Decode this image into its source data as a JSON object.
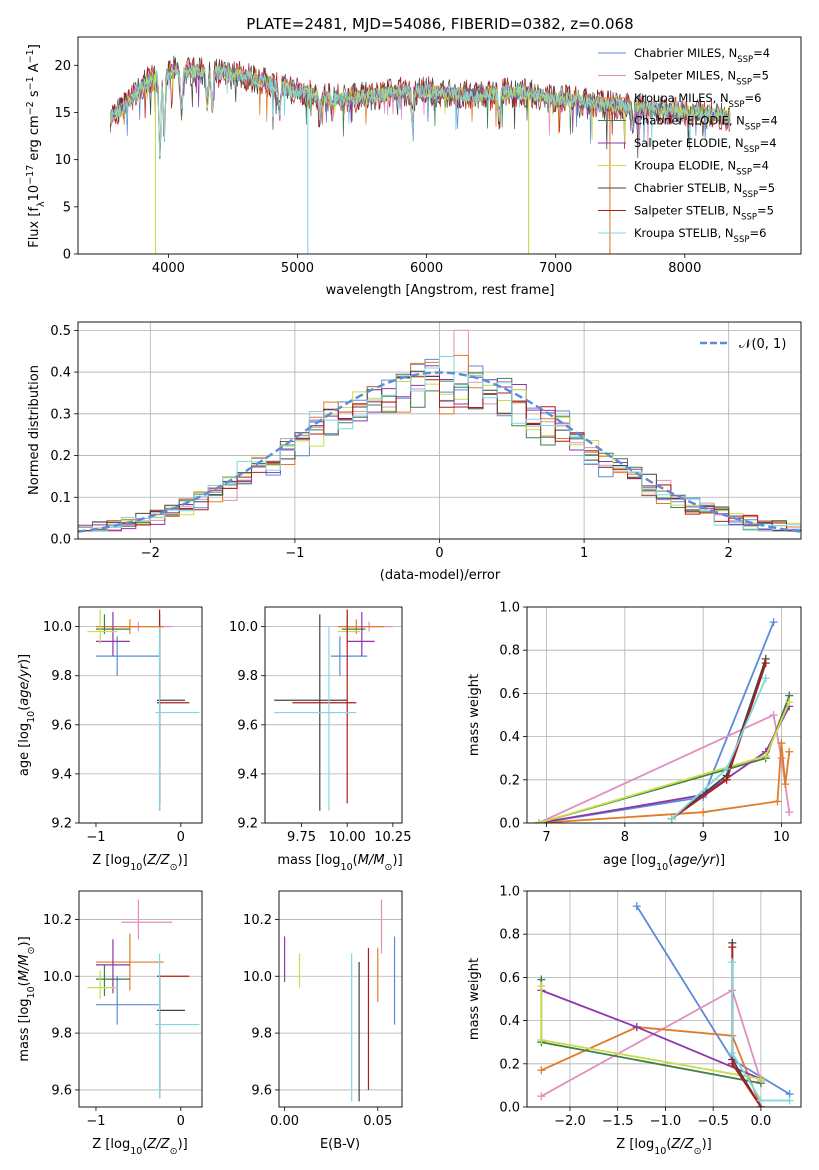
{
  "title": "PLATE=2481, MJD=54086, FIBERID=0382, z=0.068",
  "colors": {
    "Chabrier MILES": "#5b8bd9",
    "Salpeter MILES": "#e38fbe",
    "Kroupa MILES": "#e07b28",
    "Chabrier ELODIE": "#3f7f4a",
    "Salpeter ELODIE": "#8e36a8",
    "Kroupa ELODIE": "#c9dc4a",
    "Chabrier STELIB": "#444444",
    "Salpeter STELIB": "#b01c1c",
    "Kroupa STELIB": "#7fd8e0",
    "N01": "#5b8bd9"
  },
  "chart_data": [
    {
      "id": "spectrum",
      "type": "line",
      "xlabel": "wavelength [Angstrom, rest frame]",
      "ylabel": "Flux [f",
      "ylabel_sub": "λ",
      "ylabel_rest": "10",
      "ylabel_exp1": "−17",
      "ylabel_mid": " erg cm",
      "ylabel_exp2": "−2",
      "ylabel_mid2": " s",
      "ylabel_exp3": "−1",
      "ylabel_mid3": " A",
      "ylabel_exp4": "−1",
      "ylabel_end": "]",
      "xlim": [
        3300,
        8900
      ],
      "ylim": [
        0,
        23
      ],
      "xticks": [
        "4000",
        "5000",
        "6000",
        "7000",
        "8000"
      ],
      "yticks": [
        "0",
        "5",
        "10",
        "15",
        "20"
      ],
      "legend": [
        {
          "base": "Chabrier MILES, N",
          "sub": "SSP",
          "tail": "=4"
        },
        {
          "base": "Salpeter MILES, N",
          "sub": "SSP",
          "tail": "=5"
        },
        {
          "base": "Kroupa MILES, N",
          "sub": "SSP",
          "tail": "=6"
        },
        {
          "base": "Chabrier ELODIE, N",
          "sub": "SSP",
          "tail": "=4"
        },
        {
          "base": "Salpeter ELODIE, N",
          "sub": "SSP",
          "tail": "=4"
        },
        {
          "base": "Kroupa ELODIE, N",
          "sub": "SSP",
          "tail": "=4"
        },
        {
          "base": "Chabrier STELIB, N",
          "sub": "SSP",
          "tail": "=5"
        },
        {
          "base": "Salpeter STELIB, N",
          "sub": "SSP",
          "tail": "=5"
        },
        {
          "base": "Kroupa STELIB, N",
          "sub": "SSP",
          "tail": "=6"
        }
      ],
      "continuum": [
        [
          3550,
          14.5
        ],
        [
          3650,
          15.5
        ],
        [
          3750,
          17.0
        ],
        [
          3850,
          18.5
        ],
        [
          3950,
          19.0
        ],
        [
          4050,
          19.5
        ],
        [
          4200,
          19.3
        ],
        [
          4400,
          19.2
        ],
        [
          4600,
          18.8
        ],
        [
          4800,
          18.0
        ],
        [
          5000,
          17.2
        ],
        [
          5200,
          16.6
        ],
        [
          5400,
          16.5
        ],
        [
          5600,
          16.8
        ],
        [
          5800,
          17.2
        ],
        [
          6000,
          17.3
        ],
        [
          6200,
          17.0
        ],
        [
          6400,
          16.8
        ],
        [
          6600,
          17.2
        ],
        [
          6800,
          17.0
        ],
        [
          7000,
          16.5
        ],
        [
          7200,
          16.2
        ],
        [
          7400,
          15.8
        ],
        [
          7600,
          15.5
        ],
        [
          7800,
          15.3
        ],
        [
          8000,
          15.0
        ],
        [
          8200,
          14.8
        ],
        [
          8350,
          14.6
        ]
      ],
      "absorption": [
        [
          3934,
          11.0
        ],
        [
          3969,
          12.5
        ],
        [
          4102,
          15.0
        ],
        [
          4300,
          16.0
        ],
        [
          4340,
          15.5
        ],
        [
          4861,
          15.0
        ],
        [
          5175,
          14.5
        ],
        [
          5270,
          15.5
        ],
        [
          5890,
          14.0
        ],
        [
          6563,
          14.5
        ],
        [
          7600,
          13.5
        ]
      ],
      "spikes": [
        [
          3900,
          0.0,
          "Kroupa ELODIE"
        ],
        [
          5080,
          0.0,
          "Kroupa STELIB"
        ],
        [
          6790,
          0.0,
          "Kroupa ELODIE"
        ],
        [
          7420,
          0.0,
          "Kroupa MILES"
        ]
      ]
    },
    {
      "id": "residuals",
      "type": "histogram",
      "xlabel": "(data-model)/error",
      "ylabel": "Normed distribution",
      "xlim": [
        -2.5,
        2.5
      ],
      "ylim": [
        0,
        0.52
      ],
      "xticks": [
        "−2",
        "−1",
        "0",
        "1",
        "2"
      ],
      "yticks": [
        "0.0",
        "0.1",
        "0.2",
        "0.3",
        "0.4",
        "0.5"
      ],
      "gauss_label": "𝒩(0, 1)",
      "bin_width": 0.1
    },
    {
      "id": "age_vs_Z",
      "type": "errorbar",
      "xlabel": "Z [log",
      "xlabel_sub": "10",
      "xlabel_rest": "(Z/Z",
      "xlabel_sub2": "⊙",
      "xlabel_end": ")]",
      "ylabel": "age  [log",
      "ylabel_sub": "10",
      "ylabel_rest": "(age/yr)]",
      "xlim": [
        -1.2,
        0.25
      ],
      "ylim": [
        9.2,
        10.08
      ],
      "xticks": [
        "−1",
        "0"
      ],
      "yticks": [
        "9.2",
        "9.4",
        "9.6",
        "9.8",
        "10.0"
      ]
    },
    {
      "id": "age_vs_mass",
      "type": "errorbar",
      "xlabel": "mass [log",
      "xlabel_sub": "10",
      "xlabel_rest": "(M/M",
      "xlabel_sub2": "⊙",
      "xlabel_end": ")]",
      "xlim": [
        9.55,
        10.3
      ],
      "ylim": [
        9.2,
        10.08
      ],
      "xticks": [
        "9.75",
        "10.00",
        "10.25"
      ],
      "yticks": [
        "9.2",
        "9.4",
        "9.6",
        "9.8",
        "10.0"
      ]
    },
    {
      "id": "weight_vs_age",
      "type": "line",
      "xlabel": "age  [log",
      "xlabel_sub": "10",
      "xlabel_rest": "(age/yr)]",
      "ylabel": "mass weight",
      "xlim": [
        6.75,
        10.25
      ],
      "ylim": [
        0,
        1.0
      ],
      "xticks": [
        "7",
        "8",
        "9",
        "10"
      ],
      "yticks": [
        "0.0",
        "0.2",
        "0.4",
        "0.6",
        "0.8",
        "1.0"
      ],
      "series": [
        {
          "name": "Chabrier MILES",
          "x": [
            6.9,
            9.0,
            9.9
          ],
          "y": [
            0.0,
            0.12,
            0.93
          ]
        },
        {
          "name": "Salpeter MILES",
          "x": [
            6.9,
            9.9,
            10.0,
            10.1
          ],
          "y": [
            0.0,
            0.5,
            0.3,
            0.05
          ]
        },
        {
          "name": "Kroupa MILES",
          "x": [
            6.9,
            9.0,
            9.95,
            10.0,
            10.05,
            10.1
          ],
          "y": [
            0.0,
            0.05,
            0.1,
            0.37,
            0.18,
            0.33
          ]
        },
        {
          "name": "Chabrier ELODIE",
          "x": [
            6.9,
            9.8,
            10.1
          ],
          "y": [
            0.0,
            0.3,
            0.59
          ]
        },
        {
          "name": "Salpeter ELODIE",
          "x": [
            6.9,
            9.0,
            9.8,
            10.1
          ],
          "y": [
            0.0,
            0.13,
            0.33,
            0.54
          ]
        },
        {
          "name": "Kroupa ELODIE",
          "x": [
            6.9,
            9.8,
            10.1
          ],
          "y": [
            0.0,
            0.31,
            0.56
          ]
        },
        {
          "name": "Chabrier STELIB",
          "x": [
            8.6,
            9.3,
            9.8
          ],
          "y": [
            0.02,
            0.22,
            0.76
          ]
        },
        {
          "name": "Salpeter STELIB",
          "x": [
            8.6,
            9.3,
            9.8
          ],
          "y": [
            0.02,
            0.2,
            0.74
          ]
        },
        {
          "name": "Kroupa STELIB",
          "x": [
            8.6,
            9.3,
            9.8
          ],
          "y": [
            0.02,
            0.25,
            0.67
          ]
        }
      ]
    },
    {
      "id": "mass_vs_Z",
      "type": "errorbar",
      "xlabel": "Z [log",
      "xlabel_sub": "10",
      "xlabel_rest": "(Z/Z",
      "xlabel_sub2": "⊙",
      "xlabel_end": ")]",
      "ylabel": "mass [log",
      "ylabel_sub": "10",
      "ylabel_rest": "(M/M",
      "ylabel_sub2": "⊙",
      "ylabel_end": ")]",
      "xlim": [
        -1.2,
        0.25
      ],
      "ylim": [
        9.54,
        10.3
      ],
      "xticks": [
        "−1",
        "0"
      ],
      "yticks": [
        "9.6",
        "9.8",
        "10.0",
        "10.2"
      ]
    },
    {
      "id": "mass_vs_EBV",
      "type": "errorbar",
      "xlabel": "E(B-V)",
      "xlim": [
        -0.003,
        0.063
      ],
      "ylim": [
        9.54,
        10.3
      ],
      "xticks": [
        "0.00",
        "0.05"
      ],
      "yticks": [
        "9.6",
        "9.8",
        "10.0",
        "10.2"
      ]
    },
    {
      "id": "weight_vs_Z",
      "type": "line",
      "xlabel": "Z [log",
      "xlabel_sub": "10",
      "xlabel_rest": "(Z/Z",
      "xlabel_sub2": "⊙",
      "xlabel_end": ")]",
      "ylabel": "mass weight",
      "xlim": [
        -2.45,
        0.42
      ],
      "ylim": [
        0,
        1.0
      ],
      "xticks": [
        "−2.0",
        "−1.5",
        "−1.0",
        "−0.5",
        "0.0"
      ],
      "yticks": [
        "0.0",
        "0.2",
        "0.4",
        "0.6",
        "0.8",
        "1.0"
      ],
      "series": [
        {
          "name": "Chabrier MILES",
          "x": [
            -1.3,
            -0.3,
            0.3
          ],
          "y": [
            0.93,
            0.22,
            0.06
          ]
        },
        {
          "name": "Salpeter MILES",
          "x": [
            -2.3,
            -0.3,
            0.0
          ],
          "y": [
            0.05,
            0.54,
            0.12
          ]
        },
        {
          "name": "Kroupa MILES",
          "x": [
            -2.3,
            -1.3,
            -0.3,
            0.0
          ],
          "y": [
            0.17,
            0.37,
            0.33,
            0.0
          ]
        },
        {
          "name": "Chabrier ELODIE",
          "x": [
            -2.3,
            -2.3,
            0.0
          ],
          "y": [
            0.59,
            0.3,
            0.11
          ]
        },
        {
          "name": "Salpeter ELODIE",
          "x": [
            -2.3,
            -1.3,
            0.0
          ],
          "y": [
            0.54,
            0.37,
            0.13
          ]
        },
        {
          "name": "Kroupa ELODIE",
          "x": [
            -2.3,
            -2.3,
            0.0
          ],
          "y": [
            0.56,
            0.31,
            0.13
          ]
        },
        {
          "name": "Chabrier STELIB",
          "x": [
            -0.3,
            -0.3,
            0.0
          ],
          "y": [
            0.76,
            0.22,
            0.0
          ]
        },
        {
          "name": "Salpeter STELIB",
          "x": [
            -0.3,
            -0.3,
            0.0
          ],
          "y": [
            0.74,
            0.2,
            0.0
          ]
        },
        {
          "name": "Kroupa STELIB",
          "x": [
            -0.3,
            -0.3,
            0.0,
            0.3
          ],
          "y": [
            0.67,
            0.25,
            0.03,
            0.03
          ]
        }
      ]
    }
  ]
}
